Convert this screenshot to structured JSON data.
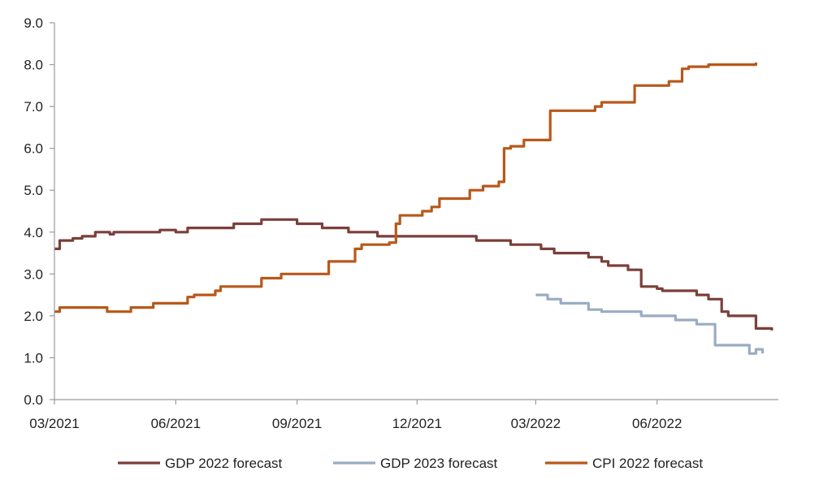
{
  "chart_data": {
    "type": "line",
    "title": "",
    "xlabel": "",
    "ylabel": "",
    "ylim": [
      0,
      9
    ],
    "y_ticks": [
      "0.0",
      "1.0",
      "2.0",
      "3.0",
      "4.0",
      "5.0",
      "6.0",
      "7.0",
      "8.0",
      "9.0"
    ],
    "x_range": [
      "2021-03-01",
      "2022-09-01"
    ],
    "x_ticks": [
      {
        "date": "2021-03-01",
        "label": "03/2021"
      },
      {
        "date": "2021-06-01",
        "label": "06/2021"
      },
      {
        "date": "2021-09-01",
        "label": "09/2021"
      },
      {
        "date": "2021-12-01",
        "label": "12/2021"
      },
      {
        "date": "2022-03-01",
        "label": "03/2022"
      },
      {
        "date": "2022-06-01",
        "label": "06/2022"
      }
    ],
    "grid": false,
    "legend_position": "bottom",
    "series": [
      {
        "name": "GDP 2022 forecast",
        "color": "#7b3f3a",
        "step": true,
        "points": [
          [
            "2021-03-01",
            3.6
          ],
          [
            "2021-03-05",
            3.8
          ],
          [
            "2021-03-15",
            3.85
          ],
          [
            "2021-03-22",
            3.9
          ],
          [
            "2021-04-01",
            4.0
          ],
          [
            "2021-04-12",
            3.95
          ],
          [
            "2021-04-15",
            4.0
          ],
          [
            "2021-05-20",
            4.05
          ],
          [
            "2021-06-01",
            4.0
          ],
          [
            "2021-06-10",
            4.1
          ],
          [
            "2021-07-15",
            4.2
          ],
          [
            "2021-07-25",
            4.2
          ],
          [
            "2021-08-05",
            4.3
          ],
          [
            "2021-09-01",
            4.2
          ],
          [
            "2021-09-20",
            4.1
          ],
          [
            "2021-10-10",
            4.0
          ],
          [
            "2021-11-01",
            3.9
          ],
          [
            "2022-01-15",
            3.8
          ],
          [
            "2022-02-10",
            3.7
          ],
          [
            "2022-03-05",
            3.6
          ],
          [
            "2022-03-15",
            3.5
          ],
          [
            "2022-03-30",
            3.5
          ],
          [
            "2022-04-10",
            3.4
          ],
          [
            "2022-04-20",
            3.3
          ],
          [
            "2022-04-25",
            3.2
          ],
          [
            "2022-05-10",
            3.1
          ],
          [
            "2022-05-20",
            2.7
          ],
          [
            "2022-06-01",
            2.65
          ],
          [
            "2022-06-05",
            2.6
          ],
          [
            "2022-07-01",
            2.5
          ],
          [
            "2022-07-10",
            2.4
          ],
          [
            "2022-07-20",
            2.1
          ],
          [
            "2022-07-25",
            2.0
          ],
          [
            "2022-08-15",
            1.7
          ],
          [
            "2022-08-27",
            1.65
          ]
        ]
      },
      {
        "name": "GDP 2023 forecast",
        "color": "#9aacc2",
        "step": true,
        "points": [
          [
            "2022-03-01",
            2.5
          ],
          [
            "2022-03-10",
            2.4
          ],
          [
            "2022-03-20",
            2.3
          ],
          [
            "2022-04-10",
            2.15
          ],
          [
            "2022-04-20",
            2.1
          ],
          [
            "2022-05-20",
            2.0
          ],
          [
            "2022-06-15",
            1.9
          ],
          [
            "2022-07-01",
            1.8
          ],
          [
            "2022-07-15",
            1.3
          ],
          [
            "2022-08-10",
            1.1
          ],
          [
            "2022-08-15",
            1.2
          ],
          [
            "2022-08-20",
            1.1
          ]
        ]
      },
      {
        "name": "CPI 2022 forecast",
        "color": "#b8581a",
        "step": true,
        "points": [
          [
            "2021-03-01",
            2.1
          ],
          [
            "2021-03-05",
            2.2
          ],
          [
            "2021-04-10",
            2.1
          ],
          [
            "2021-04-28",
            2.2
          ],
          [
            "2021-05-05",
            2.2
          ],
          [
            "2021-05-15",
            2.3
          ],
          [
            "2021-06-10",
            2.45
          ],
          [
            "2021-06-15",
            2.5
          ],
          [
            "2021-07-01",
            2.6
          ],
          [
            "2021-07-05",
            2.7
          ],
          [
            "2021-08-05",
            2.9
          ],
          [
            "2021-08-20",
            3.0
          ],
          [
            "2021-09-25",
            3.3
          ],
          [
            "2021-10-15",
            3.6
          ],
          [
            "2021-10-20",
            3.7
          ],
          [
            "2021-11-10",
            3.75
          ],
          [
            "2021-11-15",
            4.2
          ],
          [
            "2021-11-18",
            4.4
          ],
          [
            "2021-12-05",
            4.5
          ],
          [
            "2021-12-12",
            4.6
          ],
          [
            "2021-12-18",
            4.8
          ],
          [
            "2022-01-10",
            5.0
          ],
          [
            "2022-01-20",
            5.1
          ],
          [
            "2022-02-01",
            5.2
          ],
          [
            "2022-02-05",
            6.0
          ],
          [
            "2022-02-10",
            6.05
          ],
          [
            "2022-02-20",
            6.2
          ],
          [
            "2022-03-12",
            6.9
          ],
          [
            "2022-04-15",
            7.0
          ],
          [
            "2022-04-20",
            7.1
          ],
          [
            "2022-05-15",
            7.5
          ],
          [
            "2022-06-10",
            7.6
          ],
          [
            "2022-06-20",
            7.9
          ],
          [
            "2022-06-25",
            7.95
          ],
          [
            "2022-07-10",
            8.0
          ],
          [
            "2022-08-15",
            8.05
          ]
        ]
      }
    ]
  }
}
